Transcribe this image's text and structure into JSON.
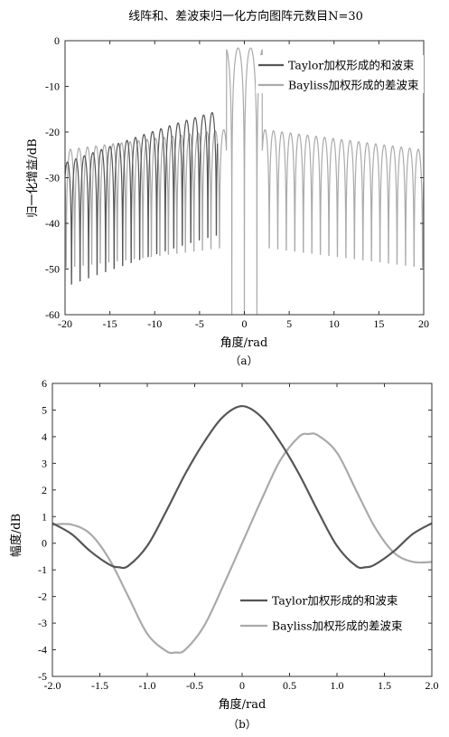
{
  "figure": {
    "caption_a": "（a）",
    "caption_b": "（b）"
  },
  "colors": {
    "sum": "#555555",
    "diff": "#aaaaaa",
    "axis": "#333333"
  },
  "chart_data": [
    {
      "type": "line",
      "title": "线阵和、差波束归一化方向图阵元数目N=30",
      "xlabel": "角度/rad",
      "ylabel": "归一化增益/dB",
      "xlim": [
        -20,
        20
      ],
      "ylim": [
        -60,
        0
      ],
      "xticks": [
        -20,
        -15,
        -10,
        -5,
        0,
        5,
        10,
        15,
        20
      ],
      "yticks": [
        0,
        -10,
        -20,
        -30,
        -40,
        -50,
        -60
      ],
      "legend_position": "top-right",
      "array_elements": 30,
      "series": [
        {
          "name": "Taylor加权形成的和波束",
          "kind": "sum",
          "mainlobe_peak_db": 0,
          "nulls": [
            -19.0,
            -18.0,
            -17.1,
            -16.1,
            -15.2,
            -14.2,
            -13.3,
            -12.3,
            -11.4,
            -10.4,
            -9.5,
            -8.5,
            -7.6,
            -6.6,
            -5.7,
            -4.7,
            -3.6,
            3.6,
            4.7,
            5.7,
            6.6,
            7.6,
            8.5,
            9.5,
            10.4,
            11.4,
            12.3,
            13.3,
            14.2,
            15.2,
            16.1,
            17.1,
            18.0,
            19.0
          ],
          "sidelobe_peaks_db": [
            {
              "x": -17.6,
              "y": -21
            },
            {
              "x": -13.7,
              "y": -18.5
            },
            {
              "x": -9.0,
              "y": -16.5
            },
            {
              "x": -5.2,
              "y": -16
            },
            {
              "x": -4.2,
              "y": -15.5
            },
            {
              "x": 4.2,
              "y": -15.5
            },
            {
              "x": 5.2,
              "y": -16
            },
            {
              "x": 9.0,
              "y": -16.5
            },
            {
              "x": 13.7,
              "y": -18.5
            },
            {
              "x": 17.6,
              "y": -21
            }
          ]
        },
        {
          "name": "Bayliss加权形成的差波束",
          "kind": "difference",
          "lobe_peaks": [
            {
              "x": -0.7,
              "y": -1.6
            },
            {
              "x": 0.7,
              "y": -1.6
            }
          ],
          "center_null": 0,
          "sidelobe_level_db": -20
        }
      ]
    },
    {
      "type": "line",
      "xlabel": "角度/rad",
      "ylabel": "幅度/dB",
      "xlim": [
        -2.0,
        2.0
      ],
      "ylim": [
        -5,
        6
      ],
      "xticks": [
        -2.0,
        -1.5,
        -1.0,
        -0.5,
        0,
        0.5,
        1.0,
        1.5,
        2.0
      ],
      "yticks": [
        6,
        5,
        4,
        3,
        2,
        1,
        0,
        -1,
        -2,
        -3,
        -4,
        -5
      ],
      "legend_position": "bottom-right",
      "series": [
        {
          "name": "Taylor加权形成的和波束",
          "x": [
            -2.0,
            -1.8,
            -1.6,
            -1.4,
            -1.3,
            -1.2,
            -1.0,
            -0.8,
            -0.6,
            -0.4,
            -0.2,
            0.0,
            0.2,
            0.4,
            0.6,
            0.8,
            1.0,
            1.2,
            1.3,
            1.4,
            1.6,
            1.8,
            2.0
          ],
          "y": [
            0.75,
            0.35,
            -0.3,
            -0.8,
            -0.9,
            -0.85,
            -0.1,
            1.2,
            2.6,
            3.8,
            4.75,
            5.15,
            4.75,
            3.8,
            2.6,
            1.2,
            -0.1,
            -0.85,
            -0.9,
            -0.8,
            -0.3,
            0.35,
            0.75
          ]
        },
        {
          "name": "Bayliss加权形成的差波束",
          "x": [
            -2.0,
            -1.8,
            -1.6,
            -1.4,
            -1.2,
            -1.0,
            -0.8,
            -0.7,
            -0.6,
            -0.4,
            -0.2,
            0.0,
            0.2,
            0.4,
            0.6,
            0.7,
            0.8,
            1.0,
            1.2,
            1.4,
            1.6,
            1.8,
            2.0
          ],
          "y": [
            0.7,
            0.7,
            0.35,
            -0.6,
            -2.0,
            -3.4,
            -4.05,
            -4.1,
            -4.0,
            -3.1,
            -1.6,
            0.0,
            1.6,
            3.1,
            4.0,
            4.1,
            4.05,
            3.4,
            2.0,
            0.6,
            -0.35,
            -0.7,
            -0.7
          ]
        }
      ]
    }
  ]
}
